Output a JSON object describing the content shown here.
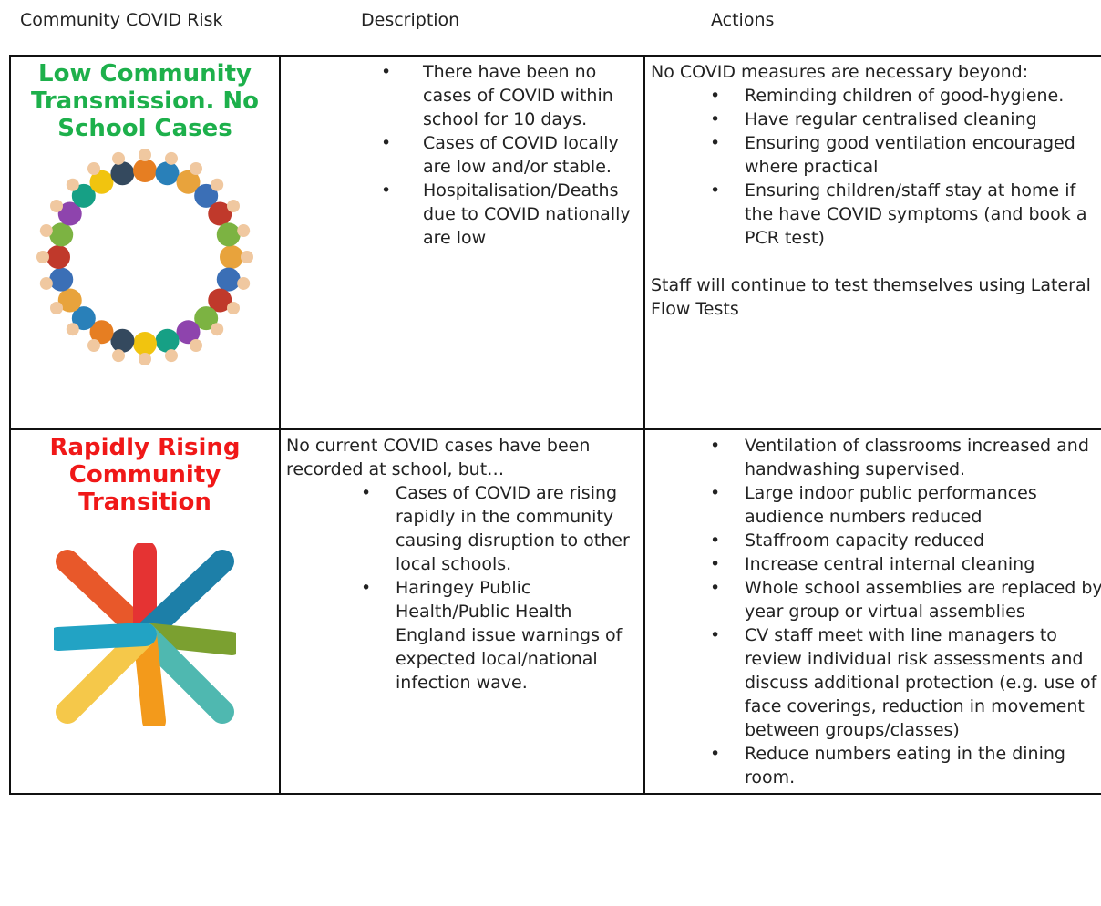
{
  "header": {
    "risk": "Community COVID Risk",
    "description": "Description",
    "actions": "Actions"
  },
  "table": {
    "rows": [
      {
        "risk": "Low Community Transmission. No School Cases",
        "description": {
          "items": [
            "There have been no cases of COVID within school for 10 days.",
            "Cases of COVID locally are low and/or stable.",
            "Hospitalisation/Deaths due to COVID nationally are low"
          ]
        },
        "actions": {
          "intro": "No COVID measures are necessary beyond:",
          "items": [
            "Reminding children of good-hygiene.",
            "Have regular centralised cleaning",
            "Ensuring good ventilation encouraged where practical",
            "Ensuring children/staff stay at home if the have COVID symptoms (and book a PCR test)"
          ],
          "outro": "Staff will continue to test themselves using Lateral Flow Tests"
        }
      },
      {
        "risk": "Rapidly Rising Community Transition",
        "description": {
          "intro": "No current COVID cases have been recorded at school, but…",
          "items": [
            "Cases of COVID are rising rapidly in the community causing disruption to other local schools.",
            "Haringey Public Health/Public Health England issue warnings of expected local/national infection wave."
          ]
        },
        "actions": {
          "items": [
            "Ventilation of classrooms increased and handwashing supervised.",
            "Large indoor public performances audience numbers reduced",
            "Staffroom capacity reduced",
            "Increase central internal cleaning",
            "Whole school assemblies are replaced by year group or virtual assemblies",
            "CV staff meet with line managers to review individual risk assessments and discuss additional protection (e.g. use of face coverings, reduction in movement between groups/classes)",
            "Reduce numbers eating in the dining room."
          ]
        }
      }
    ]
  }
}
